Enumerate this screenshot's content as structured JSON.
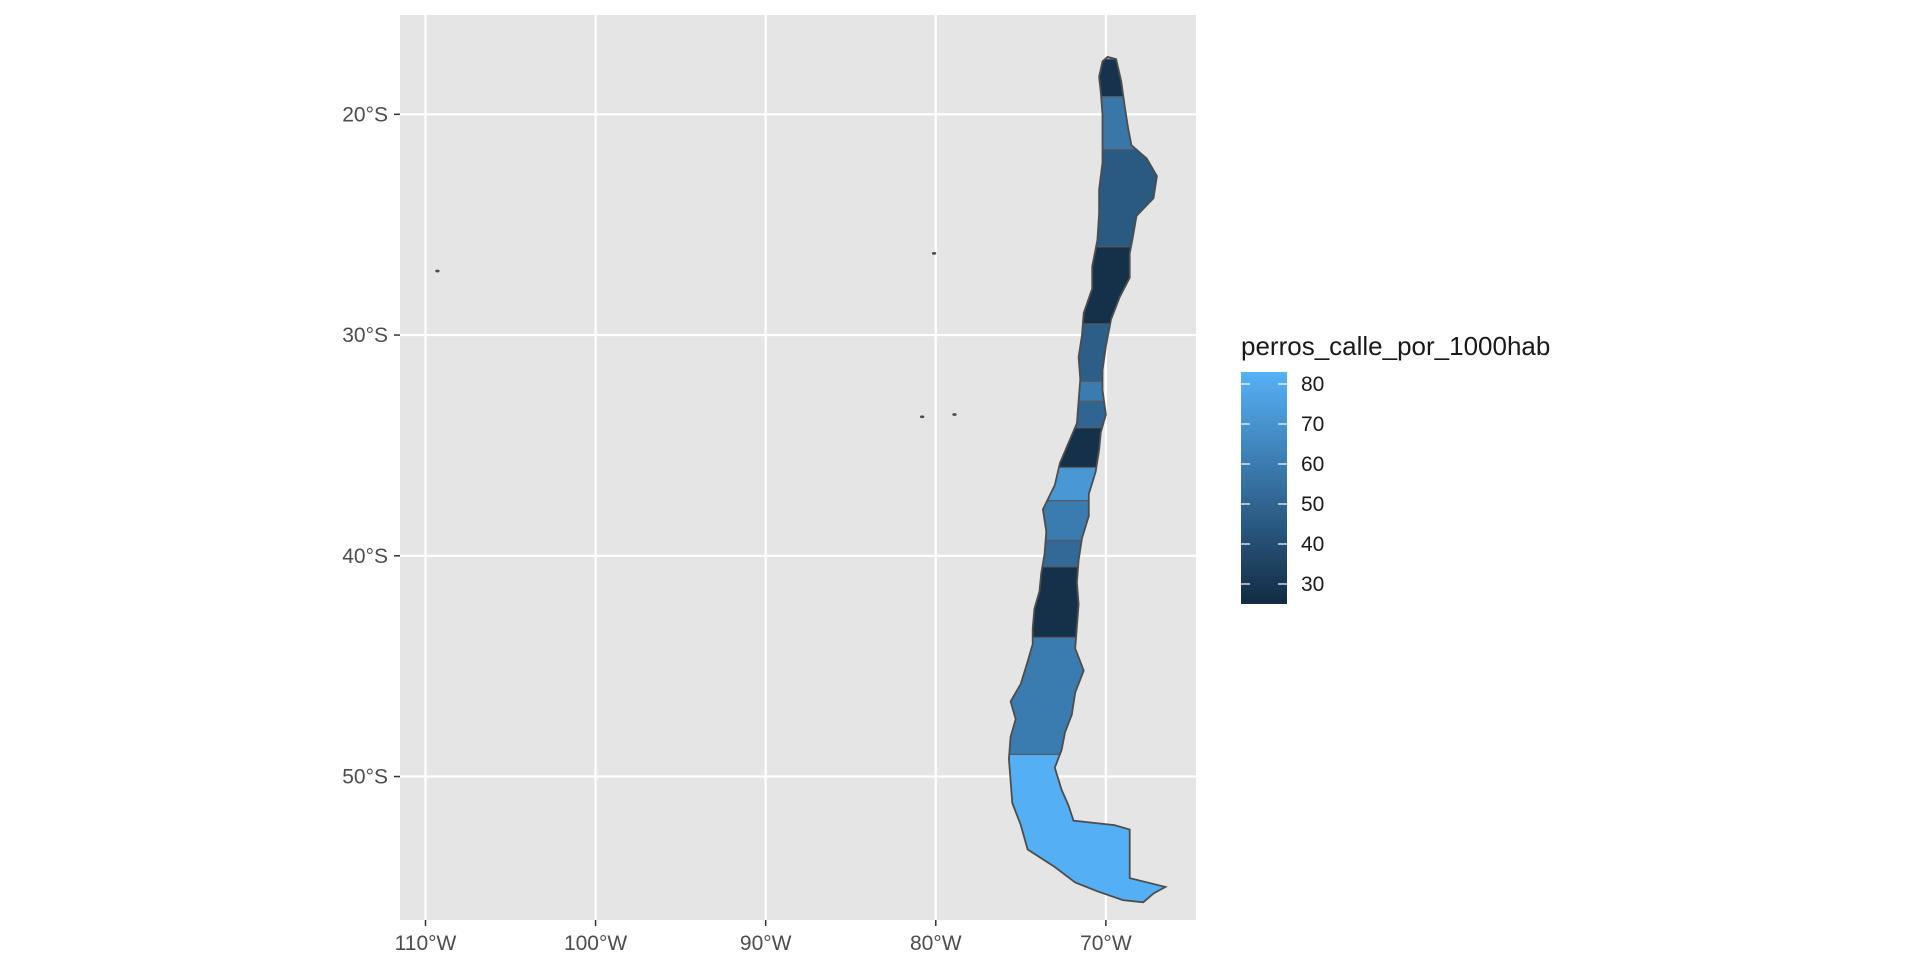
{
  "chart_data": {
    "type": "choropleth",
    "region": "Chile",
    "projection": "longitude/latitude",
    "xlim": [
      -111.5,
      -64.7
    ],
    "ylim": [
      -56.5,
      -15.5
    ],
    "x_ticks": [
      {
        "value": -110,
        "label": "110°W"
      },
      {
        "value": -100,
        "label": "100°W"
      },
      {
        "value": -90,
        "label": "90°W"
      },
      {
        "value": -80,
        "label": "80°W"
      },
      {
        "value": -70,
        "label": "70°W"
      }
    ],
    "y_ticks": [
      {
        "value": -20,
        "label": "20°S"
      },
      {
        "value": -30,
        "label": "30°S"
      },
      {
        "value": -40,
        "label": "40°S"
      },
      {
        "value": -50,
        "label": "50°S"
      }
    ],
    "grid": true,
    "panel_color": "#e5e5e5",
    "gridline_color": "#ffffff",
    "border_color": "#4d4d4d",
    "fill_variable": "perros_calle_por_1000hab",
    "fill_scale": {
      "low_color": "#132b43",
      "high_color": "#56b1f7",
      "min": 25,
      "max": 83
    },
    "legend": {
      "title": "perros_calle_por_1000hab",
      "position": "right",
      "breaks": [
        30,
        40,
        50,
        60,
        70,
        80
      ]
    },
    "regions": [
      {
        "lat_north": -17.5,
        "lat_south": -19.2,
        "value": 28
      },
      {
        "lat_north": -19.2,
        "lat_south": -21.6,
        "value": 58
      },
      {
        "lat_north": -21.6,
        "lat_south": -26.0,
        "value": 45
      },
      {
        "lat_north": -26.0,
        "lat_south": -29.5,
        "value": 27
      },
      {
        "lat_north": -29.5,
        "lat_south": -32.1,
        "value": 47
      },
      {
        "lat_north": -32.1,
        "lat_south": -33.0,
        "value": 60
      },
      {
        "lat_north": -33.0,
        "lat_south": -34.2,
        "value": 50
      },
      {
        "lat_north": -34.2,
        "lat_south": -36.0,
        "value": 27
      },
      {
        "lat_north": -36.0,
        "lat_south": -37.5,
        "value": 72
      },
      {
        "lat_north": -37.5,
        "lat_south": -39.3,
        "value": 60
      },
      {
        "lat_north": -39.3,
        "lat_south": -40.5,
        "value": 52
      },
      {
        "lat_north": -40.5,
        "lat_south": -43.7,
        "value": 27
      },
      {
        "lat_north": -43.7,
        "lat_south": -49.0,
        "value": 60
      },
      {
        "lat_north": -49.0,
        "lat_south": -56.0,
        "value": 82
      }
    ],
    "islands": [
      {
        "lon": -109.3,
        "lat": -27.1
      },
      {
        "lon": -80.1,
        "lat": -26.3
      },
      {
        "lon": -80.8,
        "lat": -33.7
      },
      {
        "lon": -78.9,
        "lat": -33.6
      }
    ]
  }
}
